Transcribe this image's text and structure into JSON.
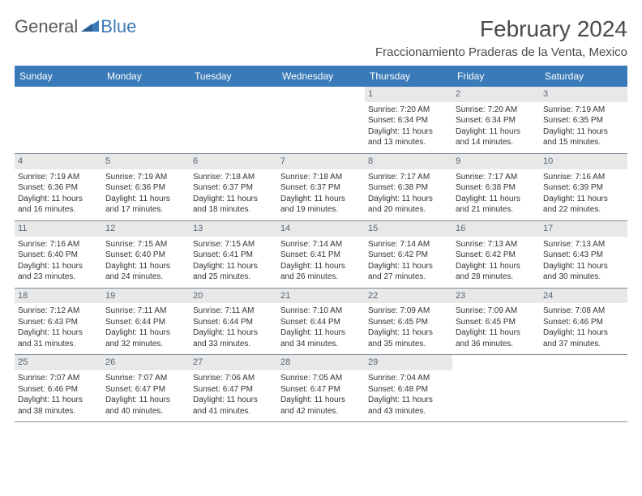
{
  "logo": {
    "gen": "General",
    "blue": "Blue"
  },
  "title": "February 2024",
  "location": "Fraccionamiento Praderas de la Venta, Mexico",
  "colors": {
    "header_bg": "#3a7ab8",
    "daynum_bg": "#e8e8e8",
    "row_border": "#7a8a9a",
    "text": "#333333",
    "logo_gray": "#58595b",
    "logo_blue": "#3a7ab8"
  },
  "weekdays": [
    "Sunday",
    "Monday",
    "Tuesday",
    "Wednesday",
    "Thursday",
    "Friday",
    "Saturday"
  ],
  "rows": [
    [
      null,
      null,
      null,
      null,
      {
        "n": "1",
        "sr": "Sunrise: 7:20 AM",
        "ss": "Sunset: 6:34 PM",
        "d1": "Daylight: 11 hours",
        "d2": "and 13 minutes."
      },
      {
        "n": "2",
        "sr": "Sunrise: 7:20 AM",
        "ss": "Sunset: 6:34 PM",
        "d1": "Daylight: 11 hours",
        "d2": "and 14 minutes."
      },
      {
        "n": "3",
        "sr": "Sunrise: 7:19 AM",
        "ss": "Sunset: 6:35 PM",
        "d1": "Daylight: 11 hours",
        "d2": "and 15 minutes."
      }
    ],
    [
      {
        "n": "4",
        "sr": "Sunrise: 7:19 AM",
        "ss": "Sunset: 6:36 PM",
        "d1": "Daylight: 11 hours",
        "d2": "and 16 minutes."
      },
      {
        "n": "5",
        "sr": "Sunrise: 7:19 AM",
        "ss": "Sunset: 6:36 PM",
        "d1": "Daylight: 11 hours",
        "d2": "and 17 minutes."
      },
      {
        "n": "6",
        "sr": "Sunrise: 7:18 AM",
        "ss": "Sunset: 6:37 PM",
        "d1": "Daylight: 11 hours",
        "d2": "and 18 minutes."
      },
      {
        "n": "7",
        "sr": "Sunrise: 7:18 AM",
        "ss": "Sunset: 6:37 PM",
        "d1": "Daylight: 11 hours",
        "d2": "and 19 minutes."
      },
      {
        "n": "8",
        "sr": "Sunrise: 7:17 AM",
        "ss": "Sunset: 6:38 PM",
        "d1": "Daylight: 11 hours",
        "d2": "and 20 minutes."
      },
      {
        "n": "9",
        "sr": "Sunrise: 7:17 AM",
        "ss": "Sunset: 6:38 PM",
        "d1": "Daylight: 11 hours",
        "d2": "and 21 minutes."
      },
      {
        "n": "10",
        "sr": "Sunrise: 7:16 AM",
        "ss": "Sunset: 6:39 PM",
        "d1": "Daylight: 11 hours",
        "d2": "and 22 minutes."
      }
    ],
    [
      {
        "n": "11",
        "sr": "Sunrise: 7:16 AM",
        "ss": "Sunset: 6:40 PM",
        "d1": "Daylight: 11 hours",
        "d2": "and 23 minutes."
      },
      {
        "n": "12",
        "sr": "Sunrise: 7:15 AM",
        "ss": "Sunset: 6:40 PM",
        "d1": "Daylight: 11 hours",
        "d2": "and 24 minutes."
      },
      {
        "n": "13",
        "sr": "Sunrise: 7:15 AM",
        "ss": "Sunset: 6:41 PM",
        "d1": "Daylight: 11 hours",
        "d2": "and 25 minutes."
      },
      {
        "n": "14",
        "sr": "Sunrise: 7:14 AM",
        "ss": "Sunset: 6:41 PM",
        "d1": "Daylight: 11 hours",
        "d2": "and 26 minutes."
      },
      {
        "n": "15",
        "sr": "Sunrise: 7:14 AM",
        "ss": "Sunset: 6:42 PM",
        "d1": "Daylight: 11 hours",
        "d2": "and 27 minutes."
      },
      {
        "n": "16",
        "sr": "Sunrise: 7:13 AM",
        "ss": "Sunset: 6:42 PM",
        "d1": "Daylight: 11 hours",
        "d2": "and 28 minutes."
      },
      {
        "n": "17",
        "sr": "Sunrise: 7:13 AM",
        "ss": "Sunset: 6:43 PM",
        "d1": "Daylight: 11 hours",
        "d2": "and 30 minutes."
      }
    ],
    [
      {
        "n": "18",
        "sr": "Sunrise: 7:12 AM",
        "ss": "Sunset: 6:43 PM",
        "d1": "Daylight: 11 hours",
        "d2": "and 31 minutes."
      },
      {
        "n": "19",
        "sr": "Sunrise: 7:11 AM",
        "ss": "Sunset: 6:44 PM",
        "d1": "Daylight: 11 hours",
        "d2": "and 32 minutes."
      },
      {
        "n": "20",
        "sr": "Sunrise: 7:11 AM",
        "ss": "Sunset: 6:44 PM",
        "d1": "Daylight: 11 hours",
        "d2": "and 33 minutes."
      },
      {
        "n": "21",
        "sr": "Sunrise: 7:10 AM",
        "ss": "Sunset: 6:44 PM",
        "d1": "Daylight: 11 hours",
        "d2": "and 34 minutes."
      },
      {
        "n": "22",
        "sr": "Sunrise: 7:09 AM",
        "ss": "Sunset: 6:45 PM",
        "d1": "Daylight: 11 hours",
        "d2": "and 35 minutes."
      },
      {
        "n": "23",
        "sr": "Sunrise: 7:09 AM",
        "ss": "Sunset: 6:45 PM",
        "d1": "Daylight: 11 hours",
        "d2": "and 36 minutes."
      },
      {
        "n": "24",
        "sr": "Sunrise: 7:08 AM",
        "ss": "Sunset: 6:46 PM",
        "d1": "Daylight: 11 hours",
        "d2": "and 37 minutes."
      }
    ],
    [
      {
        "n": "25",
        "sr": "Sunrise: 7:07 AM",
        "ss": "Sunset: 6:46 PM",
        "d1": "Daylight: 11 hours",
        "d2": "and 38 minutes."
      },
      {
        "n": "26",
        "sr": "Sunrise: 7:07 AM",
        "ss": "Sunset: 6:47 PM",
        "d1": "Daylight: 11 hours",
        "d2": "and 40 minutes."
      },
      {
        "n": "27",
        "sr": "Sunrise: 7:06 AM",
        "ss": "Sunset: 6:47 PM",
        "d1": "Daylight: 11 hours",
        "d2": "and 41 minutes."
      },
      {
        "n": "28",
        "sr": "Sunrise: 7:05 AM",
        "ss": "Sunset: 6:47 PM",
        "d1": "Daylight: 11 hours",
        "d2": "and 42 minutes."
      },
      {
        "n": "29",
        "sr": "Sunrise: 7:04 AM",
        "ss": "Sunset: 6:48 PM",
        "d1": "Daylight: 11 hours",
        "d2": "and 43 minutes."
      },
      null,
      null
    ]
  ]
}
